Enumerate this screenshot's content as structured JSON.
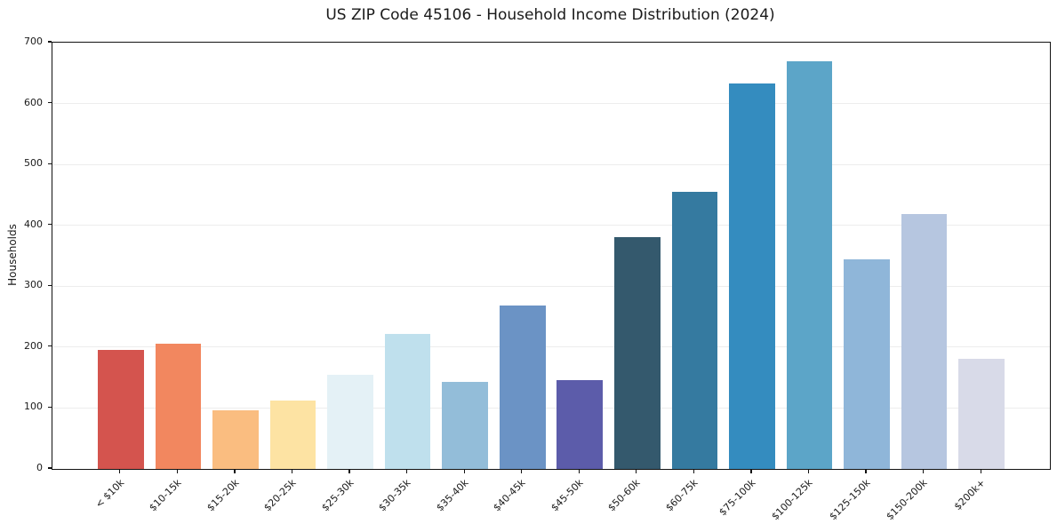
{
  "chart_data": {
    "type": "bar",
    "title": "US ZIP Code 45106 - Household Income Distribution (2024)",
    "xlabel": "",
    "ylabel": "Households",
    "categories": [
      "< $10k",
      "$10-15k",
      "$15-20k",
      "$20-25k",
      "$25-30k",
      "$30-35k",
      "$35-40k",
      "$40-45k",
      "$45-50k",
      "$50-60k",
      "$60-75k",
      "$75-100k",
      "$100-125k",
      "$125-150k",
      "$150-200k",
      "$200k+"
    ],
    "values": [
      195,
      205,
      96,
      112,
      155,
      222,
      143,
      269,
      146,
      381,
      455,
      633,
      670,
      344,
      418,
      181
    ],
    "bar_colors": [
      "#d4544e",
      "#f2875f",
      "#fabd80",
      "#fde3a3",
      "#e4f1f6",
      "#bfe0ed",
      "#93bdd9",
      "#6b93c5",
      "#5c5caa",
      "#34596d",
      "#357aa0",
      "#348cbf",
      "#5ca5c8",
      "#8fb6d9",
      "#b6c6e0",
      "#d8dae8"
    ],
    "ylim": [
      0,
      700
    ],
    "yticks": [
      0,
      100,
      200,
      300,
      400,
      500,
      600,
      700
    ],
    "grid": "horizontal",
    "legend": "none",
    "background_color": "#ffffff",
    "spine_color": "#121212",
    "gridline_color": "#ededed",
    "text_color": "#1a1a1a",
    "xtick_rotation_deg": 45
  }
}
